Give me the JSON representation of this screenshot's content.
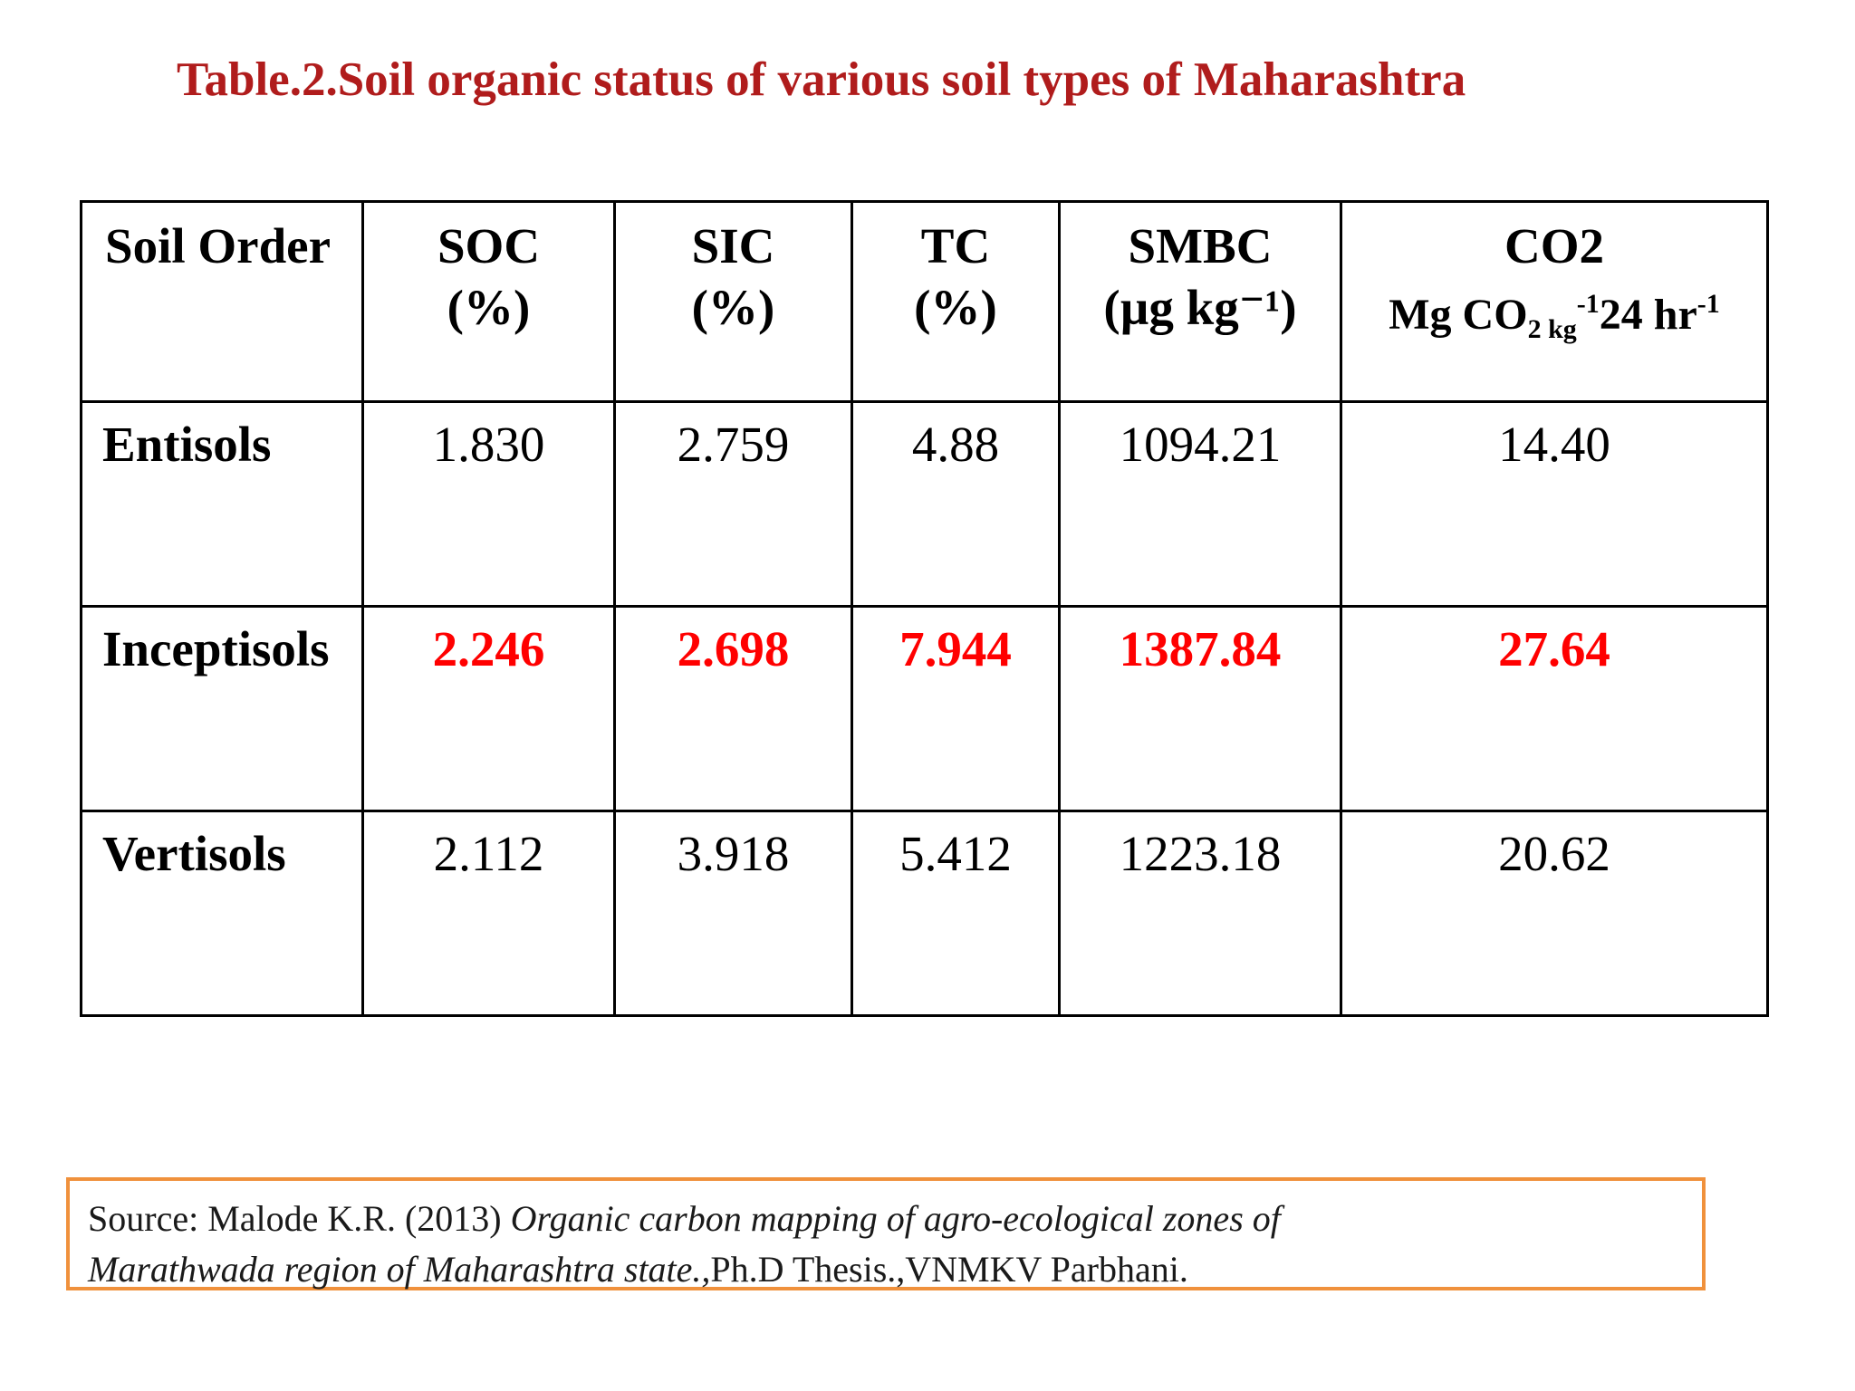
{
  "title": "Table.2.Soil organic status of various soil  types of Maharashtra",
  "table": {
    "headers": [
      {
        "name": "Soil Order",
        "unit": ""
      },
      {
        "name": "SOC",
        "unit": "(%)"
      },
      {
        "name": "SIC",
        "unit": "(%)"
      },
      {
        "name": "TC",
        "unit": "(%)"
      },
      {
        "name": "SMBC",
        "unit": "(µg kg⁻¹)"
      },
      {
        "name": "CO2",
        "unit_prefix": "Mg CO",
        "unit_sub": "2 kg",
        "unit_sup1": "-1",
        "unit_mid": "24 hr",
        "unit_sup2": "-1"
      }
    ],
    "rows": [
      {
        "label": "Entisols",
        "values": [
          "1.830",
          "2.759",
          "4.88",
          "1094.21",
          "14.40"
        ],
        "highlight": false
      },
      {
        "label": "Inceptisols",
        "values": [
          "2.246",
          "2.698",
          "7.944",
          "1387.84",
          "27.64"
        ],
        "highlight": true
      },
      {
        "label": "Vertisols",
        "values": [
          "2.112",
          "3.918",
          "5.412",
          "1223.18",
          "20.62"
        ],
        "highlight": false
      }
    ],
    "highlight_color": "#ff0000"
  },
  "source": {
    "prefix": "Source: Malode  K.R. (2013) ",
    "italic_line1": "Organic carbon mapping of  agro-ecological  zones  of",
    "italic_line2": "Marathwada region  of  Maharashtra  state.,",
    "suffix": "Ph.D Thesis.,VNMKV Parbhani."
  },
  "colors": {
    "title": "#b01c1c",
    "source_border": "#f0913c"
  }
}
